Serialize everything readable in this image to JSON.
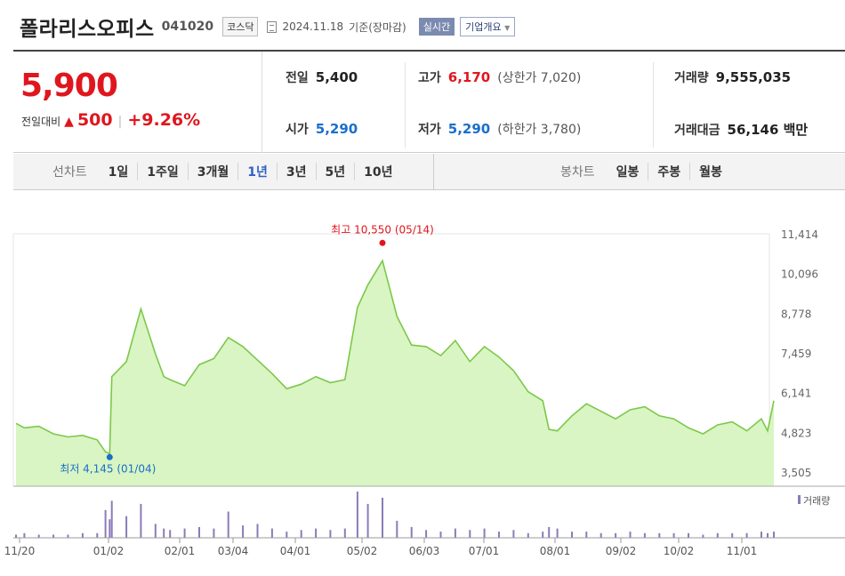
{
  "header": {
    "title": "폴라리스오피스",
    "code": "041020",
    "market": "코스닥",
    "date": "2024.11.18",
    "basis": "기준(장마감)",
    "realtime_label": "실시간",
    "company_info_label": "기업개요"
  },
  "summary": {
    "price": "5,900",
    "change_label": "전일대비",
    "change_symbol": "▲",
    "change_value": "500",
    "change_pct": "+9.26%",
    "prev_close_label": "전일",
    "prev_close": "5,400",
    "high_label": "고가",
    "high": "6,170",
    "upper_limit_label": "상한가",
    "upper_limit": "7,020",
    "volume_label": "거래량",
    "volume": "9,555,035",
    "open_label": "시가",
    "open": "5,290",
    "low_label": "저가",
    "low": "5,290",
    "lower_limit_label": "하한가",
    "lower_limit": "3,780",
    "trade_value_label": "거래대금",
    "trade_value": "56,146 백만"
  },
  "tabs": {
    "line_head": "선차트",
    "line_items": [
      "1일",
      "1주일",
      "3개월",
      "1년",
      "3년",
      "5년",
      "10년"
    ],
    "active": "1년",
    "candle_head": "봉차트",
    "candle_items": [
      "일봉",
      "주봉",
      "월봉"
    ]
  },
  "colors": {
    "up": "#e0161e",
    "down": "#1a6fc9",
    "line": "#7cc84a",
    "fill": "#d9f5c3",
    "volume": "#8b7bb8"
  },
  "chart_data": {
    "type": "area",
    "x": [
      "2023-11-20",
      "2023-11-24",
      "2023-12-01",
      "2023-12-08",
      "2023-12-15",
      "2023-12-22",
      "2023-12-29",
      "2024-01-02",
      "2024-01-04",
      "2024-01-05",
      "2024-01-12",
      "2024-01-19",
      "2024-01-26",
      "2024-01-30",
      "2024-02-02",
      "2024-02-09",
      "2024-02-16",
      "2024-02-23",
      "2024-03-01",
      "2024-03-08",
      "2024-03-15",
      "2024-03-22",
      "2024-03-29",
      "2024-04-05",
      "2024-04-12",
      "2024-04-19",
      "2024-04-26",
      "2024-05-02",
      "2024-05-07",
      "2024-05-14",
      "2024-05-21",
      "2024-05-28",
      "2024-06-04",
      "2024-06-11",
      "2024-06-18",
      "2024-06-25",
      "2024-07-02",
      "2024-07-09",
      "2024-07-16",
      "2024-07-23",
      "2024-07-30",
      "2024-08-02",
      "2024-08-06",
      "2024-08-13",
      "2024-08-20",
      "2024-08-27",
      "2024-09-03",
      "2024-09-10",
      "2024-09-17",
      "2024-09-24",
      "2024-10-01",
      "2024-10-08",
      "2024-10-15",
      "2024-10-22",
      "2024-10-29",
      "2024-11-05",
      "2024-11-12",
      "2024-11-15",
      "2024-11-18"
    ],
    "y": [
      5150,
      5000,
      5050,
      4800,
      4700,
      4750,
      4600,
      4200,
      4145,
      6700,
      7200,
      8950,
      7450,
      6700,
      6600,
      6400,
      7100,
      7300,
      8000,
      7700,
      7250,
      6800,
      6300,
      6450,
      6700,
      6500,
      6600,
      9000,
      9750,
      10550,
      8700,
      7750,
      7700,
      7400,
      7900,
      7200,
      7700,
      7350,
      6900,
      6200,
      5900,
      4950,
      4900,
      5400,
      5800,
      5550,
      5300,
      5600,
      5700,
      5400,
      5300,
      5000,
      4800,
      5100,
      5200,
      4900,
      5300,
      4900,
      5900
    ],
    "ylim": [
      3505,
      11414
    ],
    "y_ticks": [
      "11,414",
      "10,096",
      "8,778",
      "7,459",
      "6,141",
      "4,823",
      "3,505"
    ],
    "x_ticks": [
      "11/20",
      "01/02",
      "02/01",
      "03/04",
      "04/01",
      "05/02",
      "06/03",
      "07/01",
      "08/01",
      "09/02",
      "10/02",
      "11/01"
    ],
    "high_annotation": "최고 10,550 (05/14)",
    "low_annotation": "최저 4,145 (01/04)",
    "volume_label": "거래량",
    "volume": [
      2,
      3,
      2,
      2,
      2,
      3,
      3,
      18,
      12,
      24,
      14,
      22,
      9,
      6,
      5,
      6,
      7,
      6,
      17,
      8,
      9,
      6,
      4,
      5,
      6,
      5,
      6,
      30,
      22,
      26,
      11,
      7,
      5,
      4,
      6,
      5,
      6,
      4,
      5,
      3,
      4,
      7,
      6,
      4,
      4,
      3,
      3,
      4,
      3,
      3,
      3,
      3,
      2,
      3,
      3,
      3,
      4,
      3,
      4
    ],
    "grid": false
  }
}
